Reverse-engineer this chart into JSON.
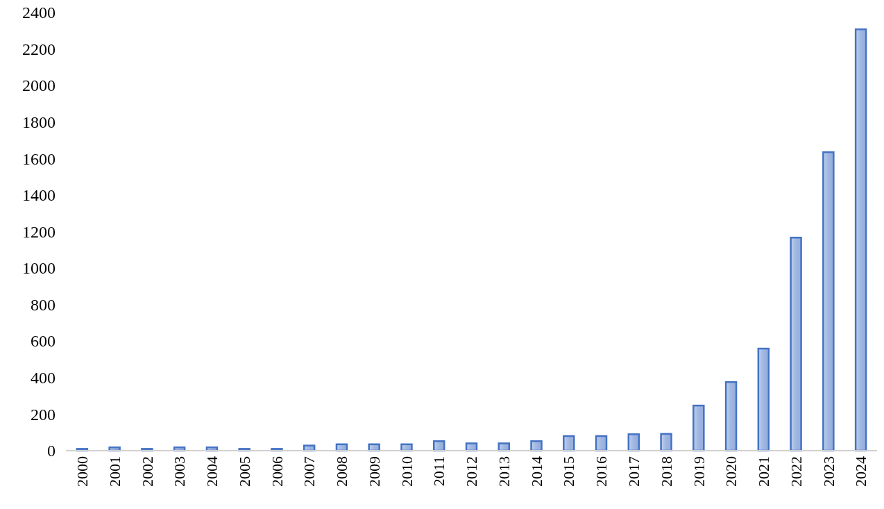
{
  "chart_data": {
    "type": "bar",
    "categories": [
      "2000",
      "2001",
      "2002",
      "2003",
      "2004",
      "2005",
      "2006",
      "2007",
      "2008",
      "2009",
      "2010",
      "2011",
      "2012",
      "2013",
      "2014",
      "2015",
      "2016",
      "2017",
      "2018",
      "2019",
      "2020",
      "2021",
      "2022",
      "2023",
      "2024"
    ],
    "values": [
      10,
      18,
      10,
      18,
      18,
      10,
      10,
      28,
      35,
      35,
      35,
      52,
      40,
      40,
      52,
      80,
      80,
      90,
      92,
      247,
      376,
      559,
      1167,
      1635,
      2308
    ],
    "color": "#4472c4",
    "ylim": [
      0,
      2400
    ],
    "yticks": [
      0,
      200,
      400,
      600,
      800,
      1000,
      1200,
      1400,
      1600,
      1800,
      2000,
      2200,
      2400
    ],
    "grid": false
  }
}
